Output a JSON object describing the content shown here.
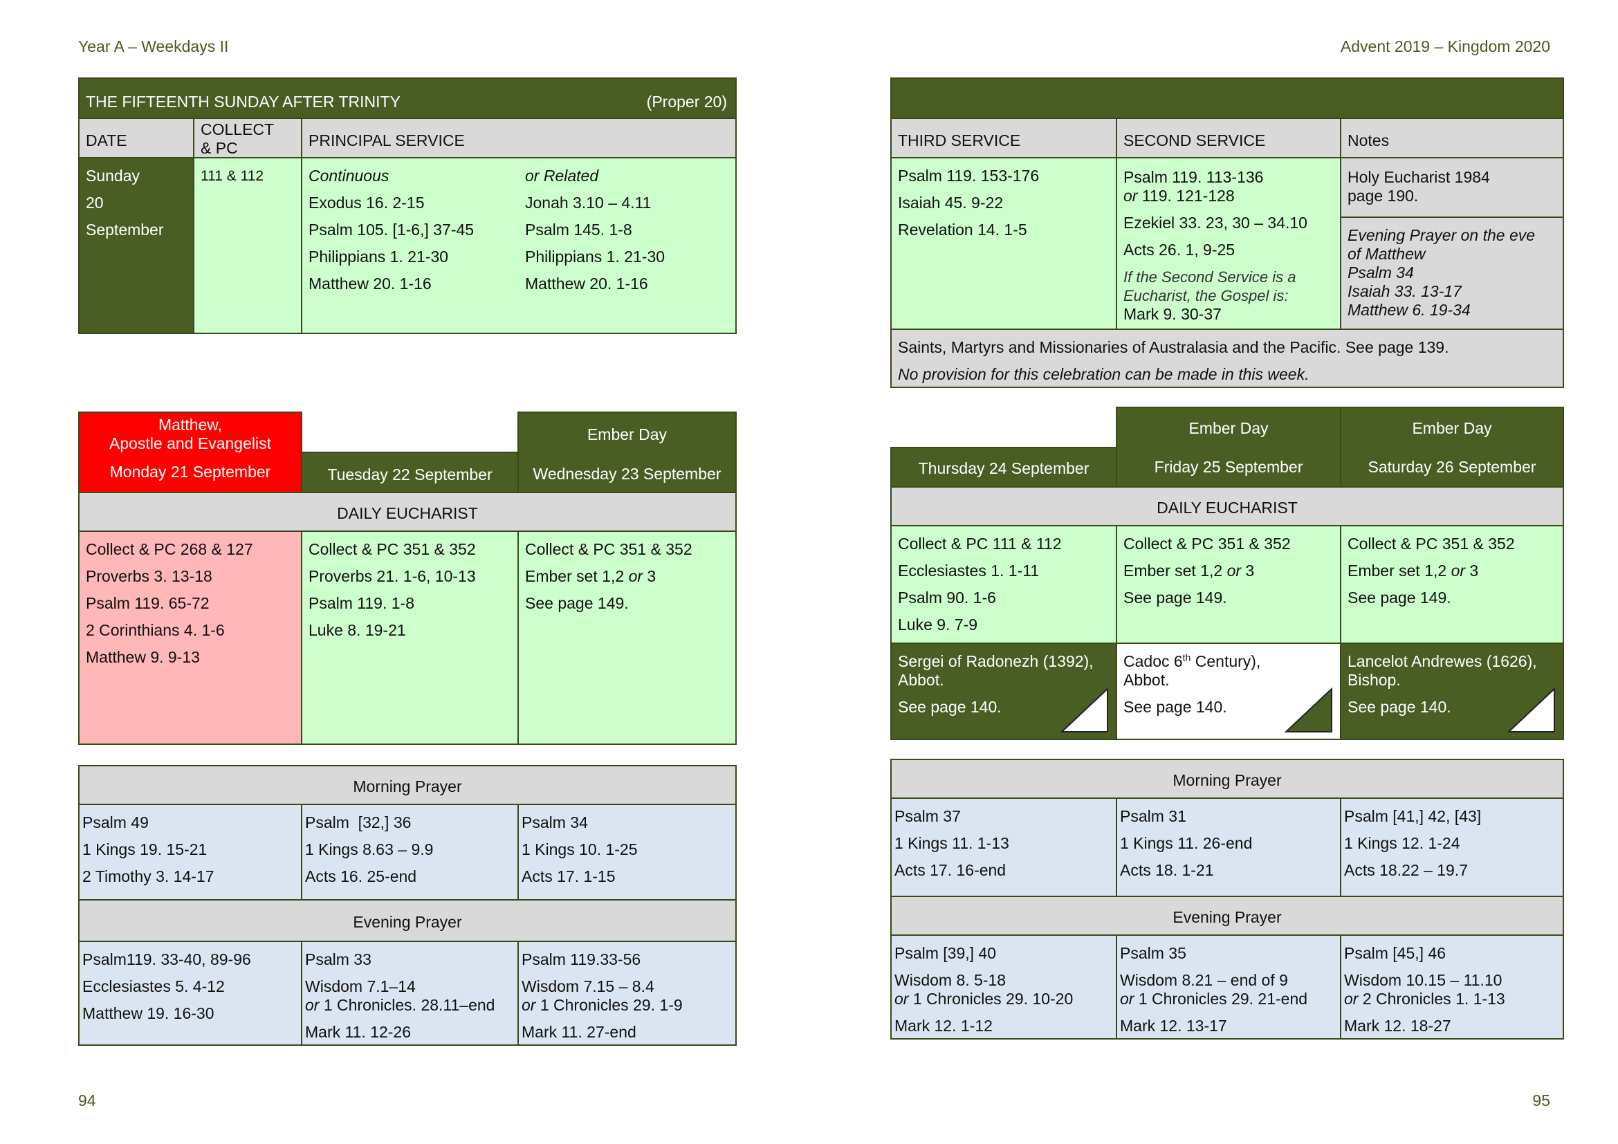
{
  "header": {
    "left": "Year A – Weekdays II",
    "right": "Advent 2019 – Kingdom 2020"
  },
  "page_numbers": {
    "left": "94",
    "right": "95"
  },
  "sunday": {
    "title": "THE FIFTEENTH SUNDAY AFTER TRINITY",
    "proper": "(Proper 20)",
    "col_date": "DATE",
    "col_collect_1": "COLLECT",
    "col_collect_2": "& PC",
    "col_principal": "PRINCIPAL SERVICE",
    "date_1": "Sunday",
    "date_2": "20",
    "date_3": "September",
    "collect": "111 & 112",
    "continuous": [
      "Continuous",
      "Exodus 16. 2-15",
      "Psalm 105. [1-6,] 37-45",
      "Philippians 1. 21-30",
      "Matthew 20. 1-16"
    ],
    "related": [
      "or Related",
      "Jonah 3.10 – 4.11",
      "Psalm 145. 1-8",
      "Philippians 1. 21-30",
      "Matthew 20. 1-16"
    ],
    "col_third": "THIRD SERVICE",
    "col_second": "SECOND SERVICE",
    "col_notes": "Notes",
    "third": [
      "Psalm 119. 153-176",
      "Isaiah 45. 9-22",
      "Revelation 14. 1-5"
    ],
    "second_1": "Psalm 119. 113-136",
    "second_2_or": "or",
    "second_2": " 119. 121-128",
    "second_3": "Ezekiel 33. 23, 30 – 34.10",
    "second_4": "Acts 26. 1, 9-25",
    "second_note_1": "If the Second Service is a",
    "second_note_2": "Eucharist, the Gospel is:",
    "second_note_3": "Mark 9. 30-37",
    "notes_1a": "Holy Eucharist 1984",
    "notes_1b": "page 190.",
    "notes_2": [
      "Evening Prayer on the eve",
      "of Matthew",
      "Psalm 34",
      "Isaiah 33. 13-17",
      "Matthew 6. 19-34"
    ],
    "footer_1": "Saints, Martyrs and Missionaries of Australasia and the Pacific. See page 139.",
    "footer_2": "No provision for this celebration can be made in this week."
  },
  "daily_eucharist_label": "DAILY EUCHARIST",
  "morning_prayer_label": "Morning Prayer",
  "evening_prayer_label": "Evening Prayer",
  "week_left": {
    "days": [
      {
        "pre_1": "Matthew,",
        "pre_2": "Apostle and Evangelist",
        "date": "Monday 21 September"
      },
      {
        "pre_1": "",
        "pre_2": "",
        "date": "Tuesday 22 September"
      },
      {
        "pre_1": "Ember Day",
        "pre_2": "",
        "date": "Wednesday 23 September"
      }
    ],
    "eucharist": [
      [
        "Collect & PC 268 & 127",
        "Proverbs 3. 13-18",
        "Psalm 119. 65-72",
        "2 Corinthians 4. 1-6",
        "Matthew 9. 9-13"
      ],
      [
        "Collect & PC 351 & 352",
        "Proverbs 21. 1-6, 10-13",
        "Psalm 119. 1-8",
        "Luke 8. 19-21"
      ],
      [
        "Collect & PC 351 & 352",
        "See page 149."
      ]
    ],
    "ember_a": "Ember set 1,2 ",
    "ember_or": "or",
    "ember_b": " 3",
    "morning": [
      [
        "Psalm 49",
        "1 Kings 19. 15-21",
        "2 Timothy 3. 14-17"
      ],
      [
        "Psalm  [32,] 36",
        "1 Kings 8.63 – 9.9",
        "Acts 16. 25-end"
      ],
      [
        "Psalm 34",
        "1 Kings 10. 1-25",
        "Acts 17. 1-15"
      ]
    ],
    "evening": [
      {
        "psalm": "Psalm119. 33-40, 89-96",
        "ot": "Ecclesiastes 5. 4-12",
        "or": "",
        "alt": "",
        "nt": "Matthew 19. 16-30"
      },
      {
        "psalm": "Psalm 33",
        "ot": "Wisdom 7.1–14",
        "or": "or",
        "alt": " 1 Chronicles. 28.11–end",
        "nt": "Mark 11. 12-26"
      },
      {
        "psalm": "Psalm 119.33-56",
        "ot": "Wisdom 7.15 – 8.4",
        "or": "or",
        "alt": " 1 Chronicles 29. 1-9",
        "nt": "Mark 11. 27-end"
      }
    ]
  },
  "week_right": {
    "days": [
      {
        "pre": "",
        "date": "Thursday 24 September"
      },
      {
        "pre": "Ember Day",
        "date": "Friday 25 September"
      },
      {
        "pre": "Ember Day",
        "date": "Saturday 26 September"
      }
    ],
    "eucharist": [
      [
        "Collect & PC 111 & 112",
        "Ecclesiastes 1. 1-11",
        "Psalm 90. 1-6",
        "Luke 9. 7-9"
      ],
      [
        "Collect & PC 351 & 352",
        "See page 149."
      ],
      [
        "Collect & PC 351 & 352",
        "See page 149."
      ]
    ],
    "ember_a": "Ember set 1,2 ",
    "ember_or": "or",
    "ember_b": " 3",
    "commem": [
      {
        "l1": "Sergei of Radonezh (1392),",
        "l2": "Abbot.",
        "see": "See page 140."
      },
      {
        "l1a": "Cadoc 6",
        "sup": "th",
        "l1b": " Century),",
        "l2": "Abbot.",
        "see": "See page 140."
      },
      {
        "l1": "Lancelot Andrewes (1626),",
        "l2": "Bishop.",
        "see": "See page 140."
      }
    ],
    "morning": [
      [
        "Psalm 37",
        "1 Kings 11. 1-13",
        "Acts 17. 16-end"
      ],
      [
        "Psalm 31",
        "1 Kings 11. 26-end",
        "Acts 18. 1-21"
      ],
      [
        "Psalm [41,] 42, [43]",
        "1 Kings 12. 1-24",
        "Acts 18.22 – 19.7"
      ]
    ],
    "evening": [
      {
        "psalm": "Psalm [39,] 40",
        "ot": "Wisdom 8. 5-18",
        "or": "or",
        "alt": " 1 Chronicles 29. 10-20",
        "nt": "Mark 12. 1-12"
      },
      {
        "psalm": "Psalm 35",
        "ot": "Wisdom 8.21 – end of 9",
        "or": "or",
        "alt": " 1 Chronicles 29. 21-end",
        "nt": "Mark 12. 13-17"
      },
      {
        "psalm": "Psalm [45,] 46",
        "ot": "Wisdom 10.15 – 11.10",
        "or": "or",
        "alt": " 2 Chronicles 1. 1-13",
        "nt": "Mark 12. 18-27"
      }
    ]
  }
}
